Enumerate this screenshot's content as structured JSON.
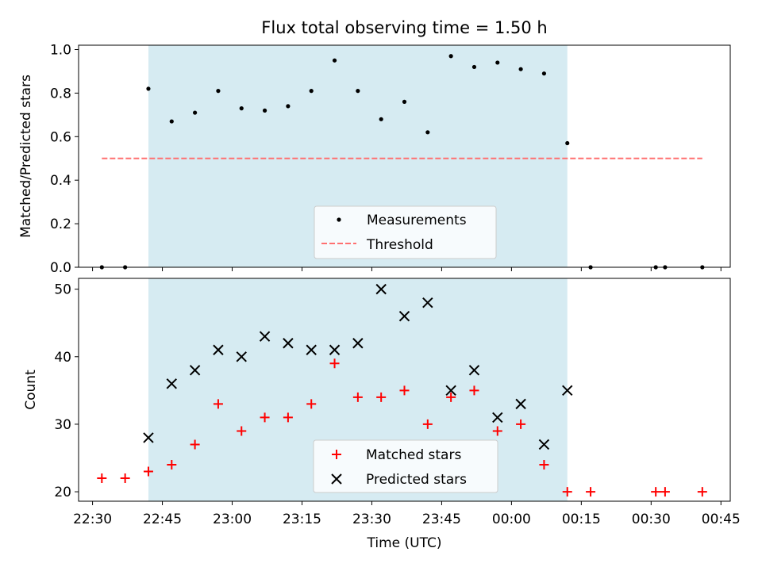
{
  "chart_data": [
    {
      "type": "scatter",
      "title": "Flux total observing time = 1.50 h",
      "xlabel": "",
      "ylabel": "Matched/Predicted stars",
      "xlim": [
        "22:27",
        "00:47"
      ],
      "ylim": [
        0,
        1.02
      ],
      "yticks": [
        "0.0",
        "0.2",
        "0.4",
        "0.6",
        "0.8",
        "1.0"
      ],
      "shaded_span": [
        "22:42",
        "00:12"
      ],
      "shaded_color": "#add8e6",
      "series": [
        {
          "name": "Measurements",
          "marker": "dot",
          "color": "#000000",
          "x": [
            "22:32",
            "22:37",
            "22:42",
            "22:47",
            "22:52",
            "22:57",
            "23:02",
            "23:07",
            "23:12",
            "23:17",
            "23:22",
            "23:27",
            "23:32",
            "23:37",
            "23:42",
            "23:47",
            "23:52",
            "23:57",
            "00:02",
            "00:07",
            "00:12",
            "00:17",
            "00:31",
            "00:33",
            "00:41"
          ],
          "y": [
            0,
            0,
            0.82,
            0.67,
            0.71,
            0.81,
            0.73,
            0.72,
            0.74,
            0.81,
            0.95,
            0.81,
            0.68,
            0.76,
            0.62,
            0.97,
            0.92,
            0.94,
            0.91,
            0.89,
            0.57,
            0,
            0,
            0,
            0
          ]
        },
        {
          "name": "Threshold",
          "marker": "dashed-line",
          "color": "#ff7070",
          "x": [
            "22:32",
            "00:41"
          ],
          "y": [
            0.5,
            0.5
          ]
        }
      ],
      "legend": "lower-center"
    },
    {
      "type": "scatter",
      "title": "",
      "xlabel": "Time (UTC)",
      "ylabel": "Count",
      "xlim": [
        "22:27",
        "00:47"
      ],
      "ylim": [
        18.6,
        51.6
      ],
      "yticks": [
        "20",
        "30",
        "40",
        "50"
      ],
      "xticks": [
        "22:30",
        "22:45",
        "23:00",
        "23:15",
        "23:30",
        "23:45",
        "00:00",
        "00:15",
        "00:30",
        "00:45"
      ],
      "shaded_span": [
        "22:42",
        "00:12"
      ],
      "shaded_color": "#add8e6",
      "series": [
        {
          "name": "Matched stars",
          "marker": "plus",
          "color": "#ff0000",
          "x": [
            "22:32",
            "22:37",
            "22:42",
            "22:47",
            "22:52",
            "22:57",
            "23:02",
            "23:07",
            "23:12",
            "23:17",
            "23:22",
            "23:27",
            "23:32",
            "23:37",
            "23:42",
            "23:47",
            "23:52",
            "23:57",
            "00:02",
            "00:07",
            "00:12",
            "00:17",
            "00:31",
            "00:33",
            "00:41"
          ],
          "y": [
            22,
            22,
            23,
            24,
            27,
            33,
            29,
            31,
            31,
            33,
            39,
            34,
            34,
            35,
            30,
            34,
            35,
            29,
            30,
            24,
            20,
            20,
            20,
            20,
            20
          ]
        },
        {
          "name": "Predicted stars",
          "marker": "x",
          "color": "#000000",
          "x": [
            "22:42",
            "22:47",
            "22:52",
            "22:57",
            "23:02",
            "23:07",
            "23:12",
            "23:17",
            "23:22",
            "23:27",
            "23:32",
            "23:37",
            "23:42",
            "23:47",
            "23:52",
            "23:57",
            "00:02",
            "00:07",
            "00:12"
          ],
          "y": [
            28,
            36,
            38,
            41,
            40,
            43,
            42,
            41,
            41,
            42,
            50,
            46,
            48,
            35,
            38,
            31,
            33,
            27,
            35
          ]
        }
      ],
      "legend": "lower-center"
    }
  ]
}
